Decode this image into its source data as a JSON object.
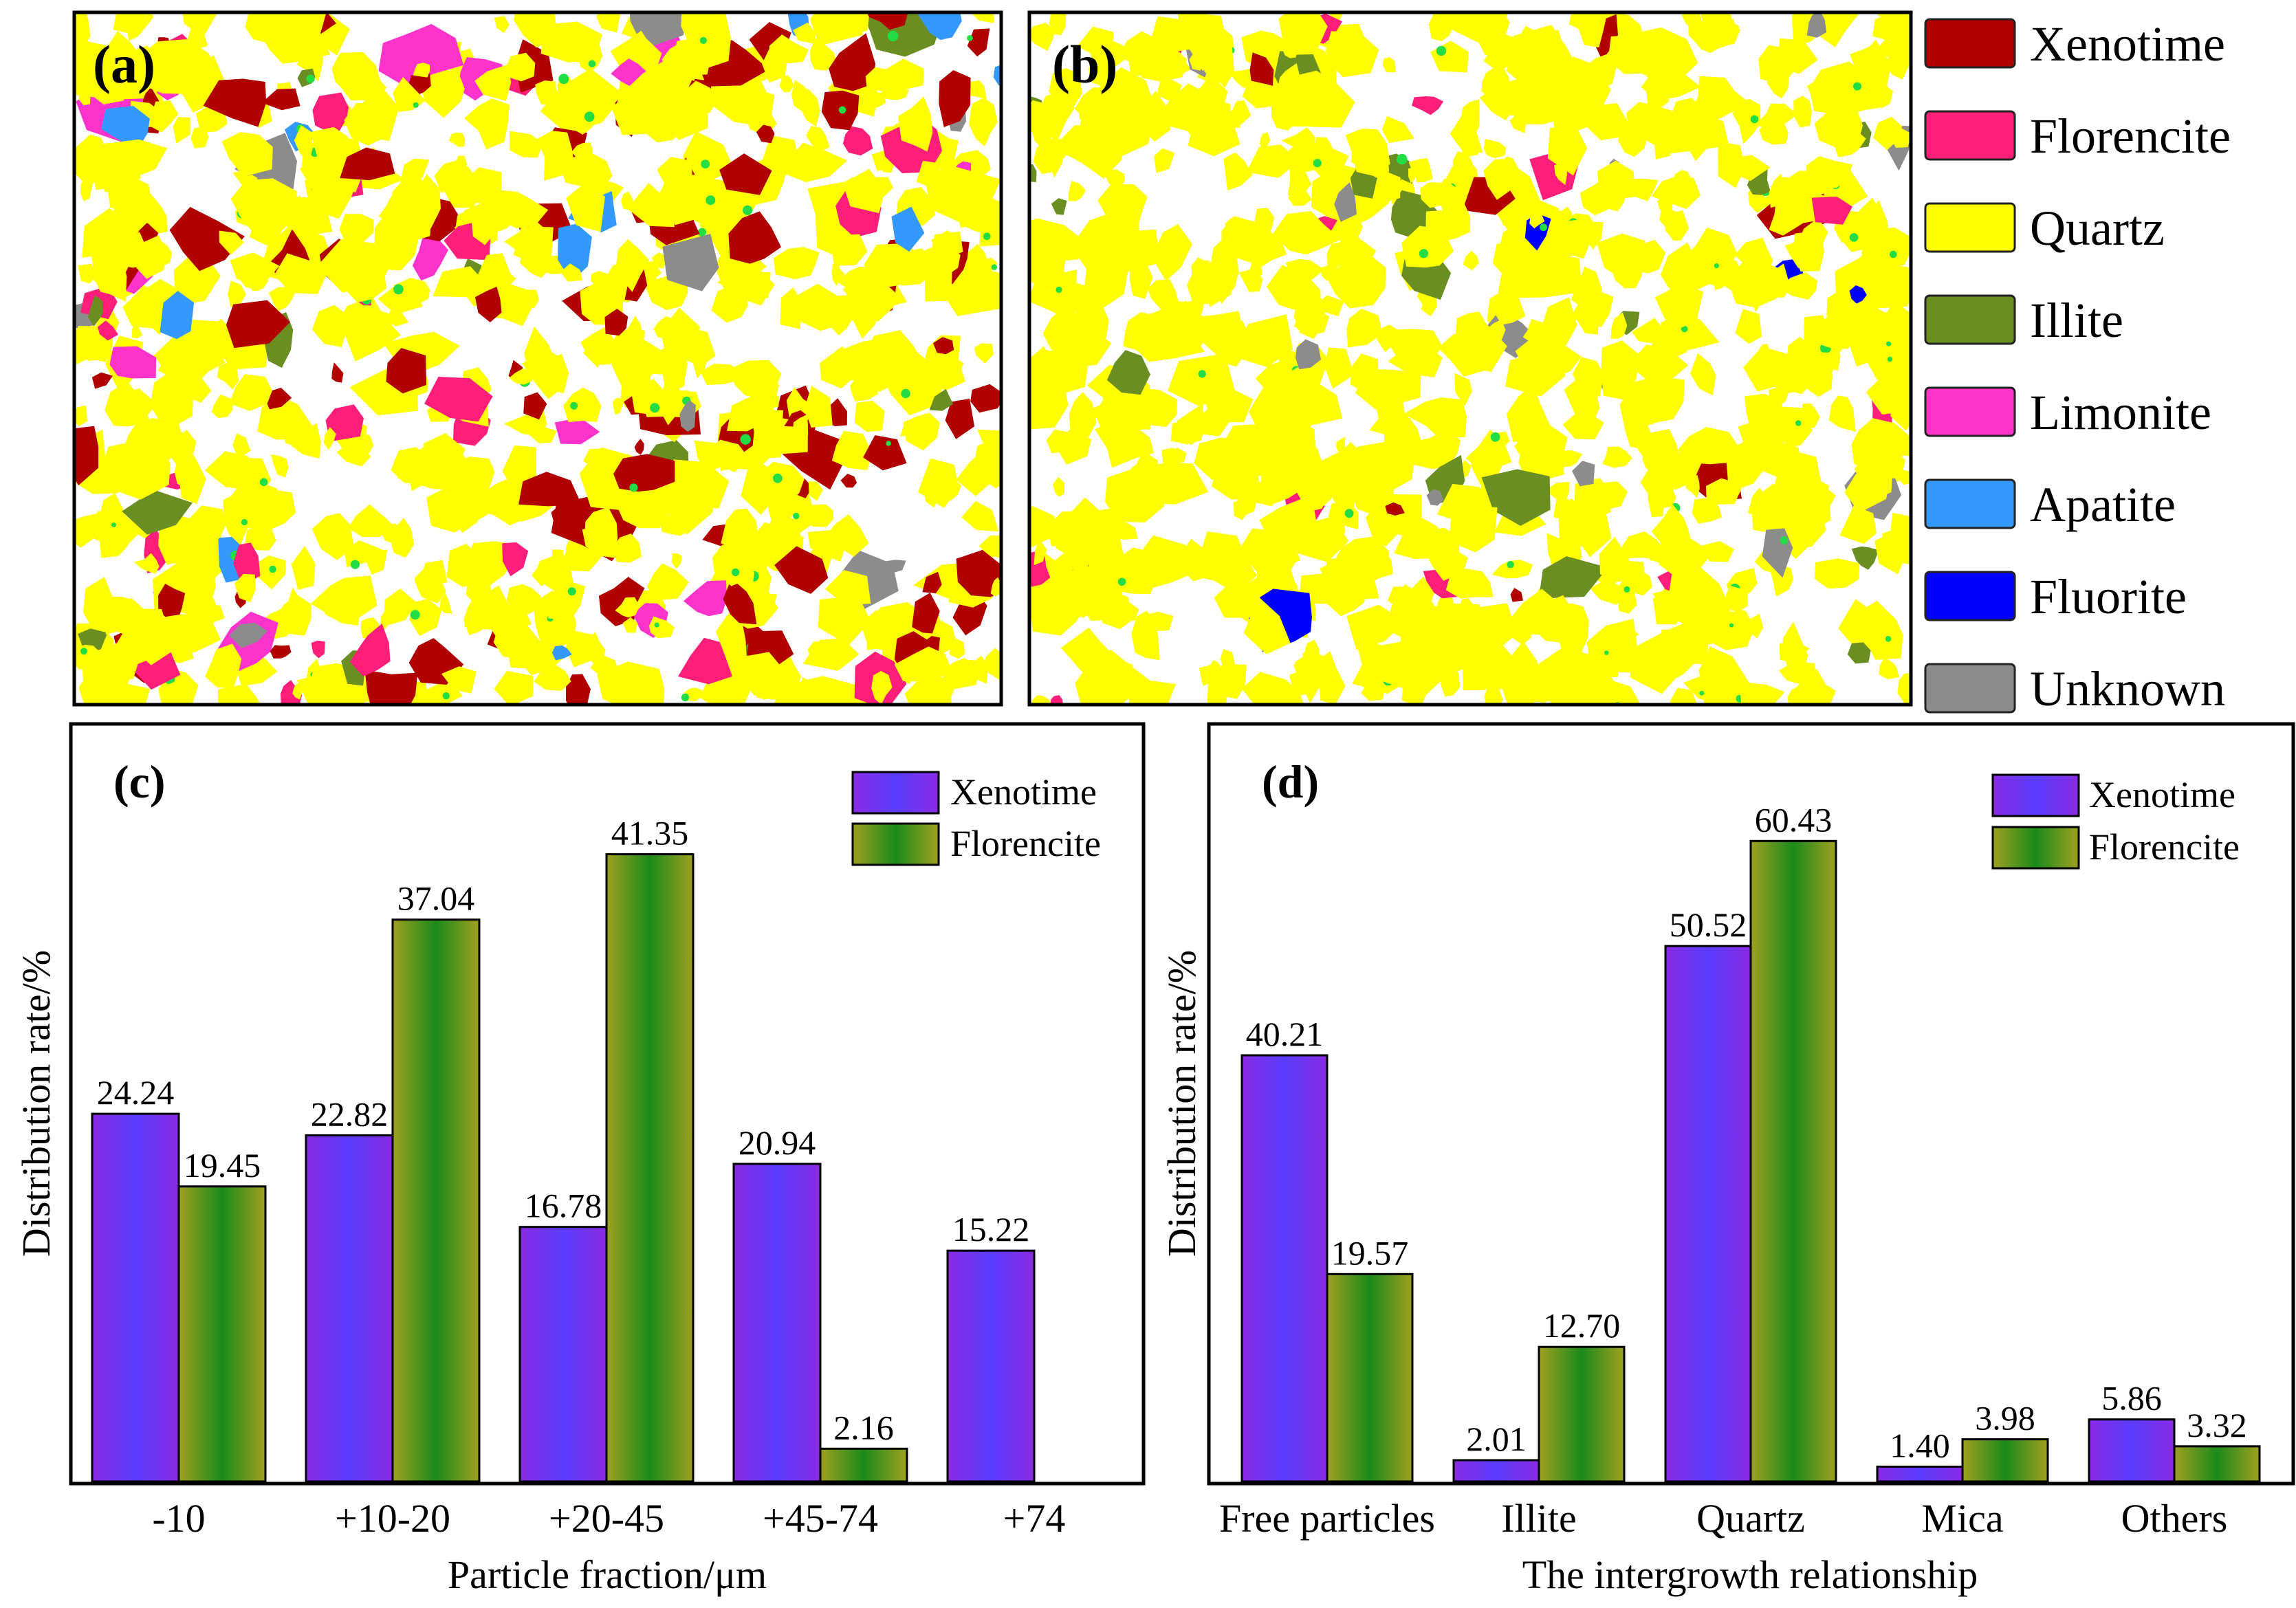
{
  "panels": {
    "a": {
      "label": "(a)"
    },
    "b": {
      "label": "(b)"
    }
  },
  "legend": {
    "entries": [
      {
        "name": "Xenotime",
        "color": "#b00000"
      },
      {
        "name": "Florencite",
        "color": "#ff1f7a"
      },
      {
        "name": "Quartz",
        "color": "#ffff00"
      },
      {
        "name": "Illite",
        "color": "#6b8e23"
      },
      {
        "name": "Limonite",
        "color": "#ff33cc"
      },
      {
        "name": "Apatite",
        "color": "#3399ff"
      },
      {
        "name": "Fluorite",
        "color": "#0000ff"
      },
      {
        "name": "Unknown",
        "color": "#8c8c8c"
      }
    ]
  },
  "colors": {
    "xenotime_bar": [
      "#8a2be2",
      "#5a3cff",
      "#8a2be2"
    ],
    "florencite_bar": [
      "#a0a020",
      "#1a8a1a",
      "#a0a020"
    ],
    "green_speckle": "#22dd44"
  },
  "chart_data": [
    {
      "type": "bar",
      "label": "(c)",
      "categories": [
        "-10",
        "+10-20",
        "+20-45",
        "+45-74",
        "+74"
      ],
      "series": [
        {
          "name": "Xenotime",
          "values": [
            24.24,
            22.82,
            16.78,
            20.94,
            15.22
          ],
          "labels": [
            "24.24",
            "22.82",
            "16.78",
            "20.94",
            "15.22"
          ]
        },
        {
          "name": "Florencite",
          "values": [
            19.45,
            37.04,
            41.35,
            2.16,
            null
          ],
          "labels": [
            "19.45",
            "37.04",
            "41.35",
            "2.16",
            ""
          ]
        }
      ],
      "xlabel": "Particle fraction/μm",
      "ylabel": "Distribution rate/%",
      "ylim": [
        0,
        46
      ],
      "grid": false,
      "legend": "top-right"
    },
    {
      "type": "bar",
      "label": "(d)",
      "categories": [
        "Free particles",
        "Illite",
        "Quartz",
        "Mica",
        "Others"
      ],
      "series": [
        {
          "name": "Xenotime",
          "values": [
            40.21,
            2.01,
            50.52,
            1.4,
            5.86
          ],
          "labels": [
            "40.21",
            "2.01",
            "50.52",
            "1.40",
            "5.86"
          ]
        },
        {
          "name": "Florencite",
          "values": [
            19.57,
            12.7,
            60.43,
            3.98,
            3.32
          ],
          "labels": [
            "19.57",
            "12.70",
            "60.43",
            "3.98",
            "3.32"
          ]
        }
      ],
      "xlabel": "The intergrowth relationship",
      "ylabel": "Distribution rate/%",
      "ylim": [
        0,
        67
      ],
      "grid": false,
      "legend": "top-right"
    }
  ]
}
